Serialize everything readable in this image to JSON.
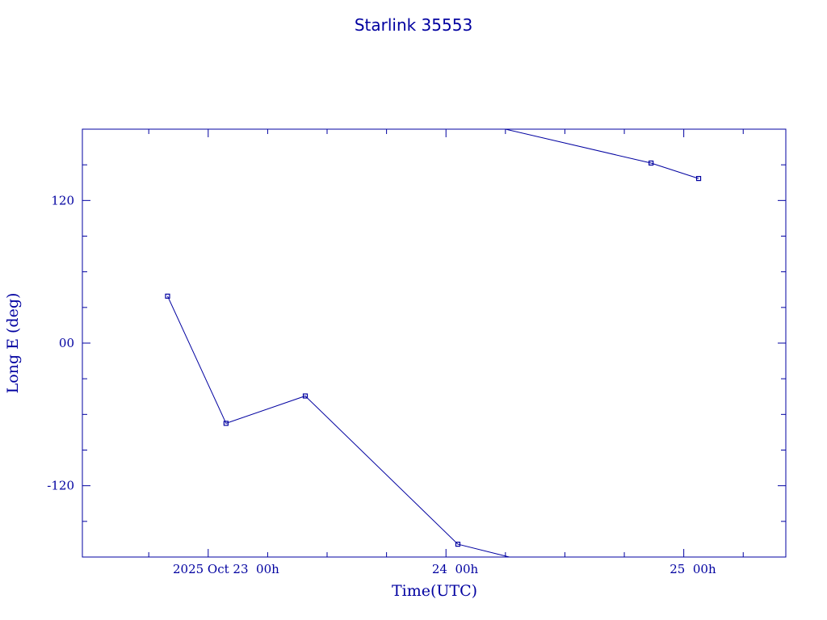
{
  "chart_data": {
    "type": "line",
    "title": "Starlink 35553",
    "xlabel": "Time(UTC)",
    "ylabel": "Long E (deg)",
    "x_ticks": [
      {
        "t": 0,
        "label": "2025 Oct 23  00h"
      },
      {
        "t": 24,
        "label": "24  00h"
      },
      {
        "t": 48,
        "label": "25  00h"
      }
    ],
    "y_ticks": [
      {
        "v": 120,
        "label": "120"
      },
      {
        "v": 0,
        "label": "00"
      },
      {
        "v": -120,
        "label": "-120"
      }
    ],
    "xlim": [
      -12.7,
      58.3
    ],
    "ylim": [
      -180,
      180
    ],
    "grid": false,
    "line_color": "#0000a0",
    "segments": [
      {
        "points": [
          [
            -4.1,
            39.5
          ],
          [
            1.8,
            -67.5
          ],
          [
            9.8,
            -44.5
          ],
          [
            25.2,
            -169.2
          ],
          [
            30.4,
            -180
          ]
        ]
      },
      {
        "points": [
          [
            30.0,
            180
          ],
          [
            44.7,
            151.5
          ],
          [
            49.5,
            138.5
          ]
        ]
      }
    ],
    "markers": [
      [
        -4.1,
        39.5
      ],
      [
        1.8,
        -67.5
      ],
      [
        9.8,
        -44.5
      ],
      [
        25.2,
        -169.2
      ],
      [
        44.7,
        151.5
      ],
      [
        49.5,
        138.5
      ]
    ]
  }
}
